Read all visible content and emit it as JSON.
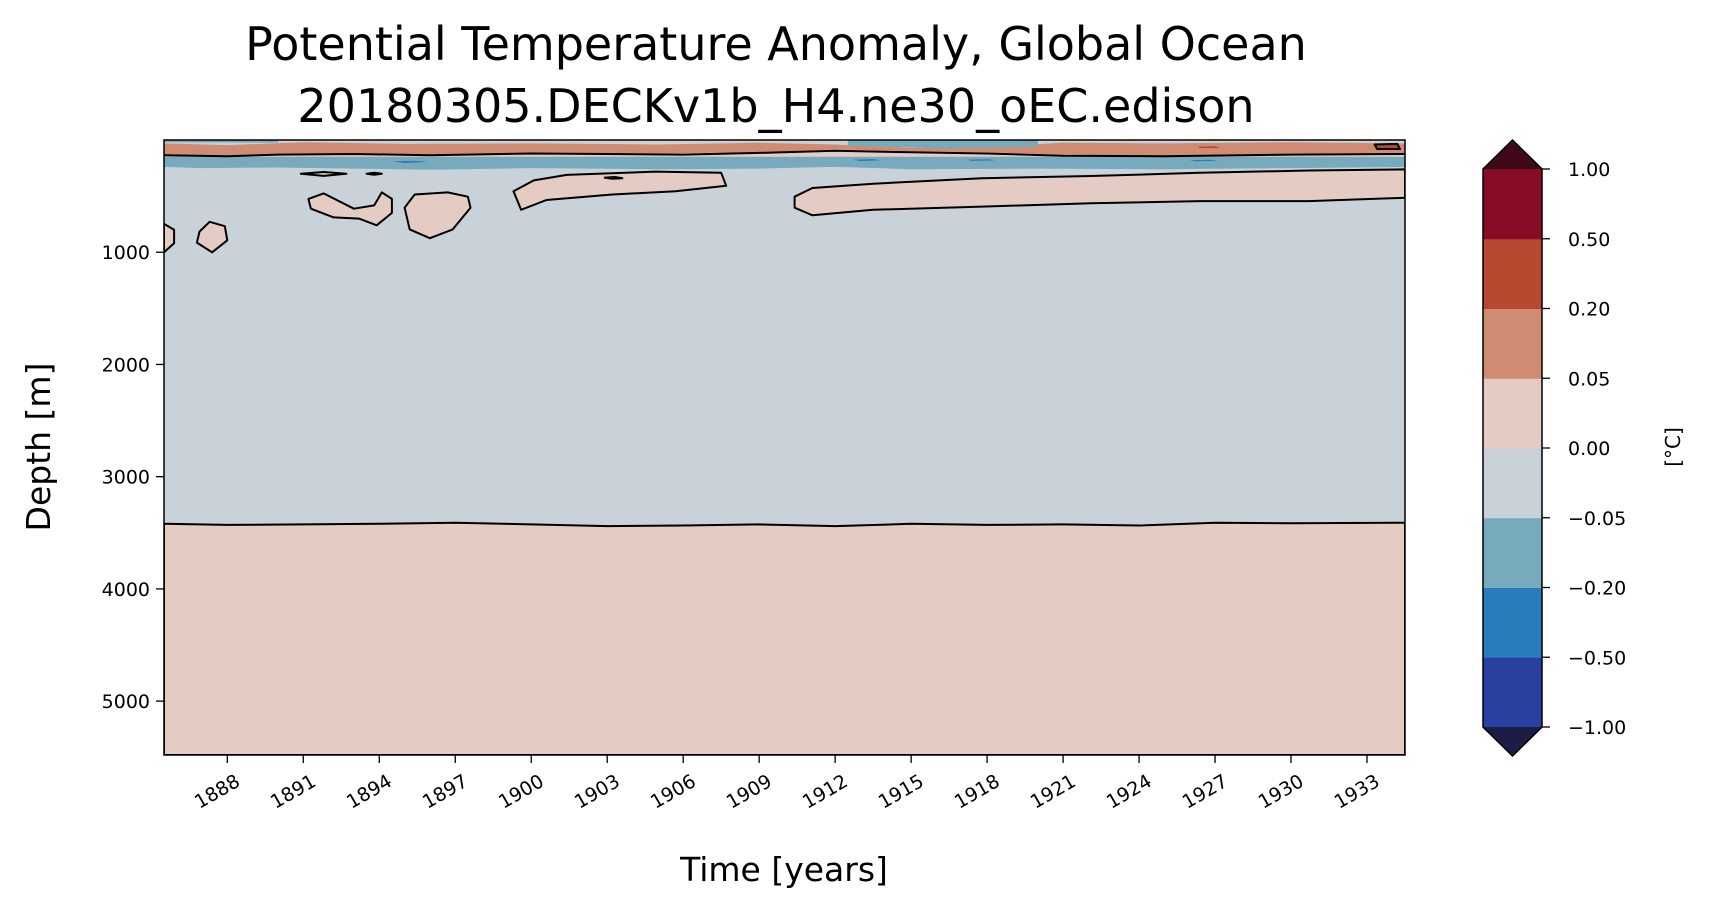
{
  "chart_data": {
    "type": "heatmap",
    "subtype": "filled-contour",
    "title": [
      "Potential Temperature Anomaly, Global Ocean",
      "20180305.DECKv1b_H4.ne30_oEC.edison"
    ],
    "xlabel": "Time [years]",
    "ylabel": "Depth [m]",
    "xlim": [
      1885.5,
      1934.5
    ],
    "ylim": [
      5480,
      0
    ],
    "xticks": [
      1888,
      1891,
      1894,
      1897,
      1900,
      1903,
      1906,
      1909,
      1912,
      1915,
      1918,
      1921,
      1924,
      1927,
      1930,
      1933
    ],
    "yticks": [
      1000,
      2000,
      3000,
      4000,
      5000
    ],
    "colorbar": {
      "label": "[°C]",
      "levels": [
        -1.0,
        -0.5,
        -0.2,
        -0.05,
        0.0,
        0.05,
        0.2,
        0.5,
        1.0
      ],
      "tick_labels": [
        "−1.00",
        "−0.50",
        "−0.20",
        "−0.05",
        "0.00",
        "0.05",
        "0.20",
        "0.50",
        "1.00"
      ],
      "colors": [
        "#2a40a0",
        "#2a7bba",
        "#78aabe",
        "#c9d2d8",
        "#e4cbc4",
        "#cf8c73",
        "#b8482f",
        "#870d27"
      ],
      "under_color": "#1b1d45",
      "over_color": "#3e0a17",
      "extend": "both"
    },
    "background_band": 3,
    "regions": [
      {
        "name": "deep-warm-layer",
        "band": 4,
        "contour": true,
        "points": [
          [
            1885.5,
            3420
          ],
          [
            1888,
            3430
          ],
          [
            1891,
            3425
          ],
          [
            1894,
            3420
          ],
          [
            1897,
            3410
          ],
          [
            1900,
            3425
          ],
          [
            1903,
            3440
          ],
          [
            1906,
            3435
          ],
          [
            1909,
            3425
          ],
          [
            1912,
            3440
          ],
          [
            1915,
            3420
          ],
          [
            1918,
            3430
          ],
          [
            1921,
            3425
          ],
          [
            1924,
            3435
          ],
          [
            1927,
            3410
          ],
          [
            1930,
            3415
          ],
          [
            1934.5,
            3410
          ],
          [
            1934.5,
            5480
          ],
          [
            1885.5,
            5480
          ]
        ]
      },
      {
        "name": "surface-cool-layer",
        "band": 2,
        "contour": false,
        "points": [
          [
            1885.5,
            100
          ],
          [
            1934.5,
            100
          ],
          [
            1934.5,
            240
          ],
          [
            1930,
            250
          ],
          [
            1925,
            260
          ],
          [
            1920,
            255
          ],
          [
            1915,
            260
          ],
          [
            1912,
            240
          ],
          [
            1909,
            255
          ],
          [
            1905,
            260
          ],
          [
            1900,
            250
          ],
          [
            1896,
            265
          ],
          [
            1893,
            255
          ],
          [
            1890,
            245
          ],
          [
            1887,
            250
          ],
          [
            1885.5,
            240
          ]
        ]
      },
      {
        "name": "surface-strip-pink",
        "band": 4,
        "contour": false,
        "points": [
          [
            1885.5,
            95
          ],
          [
            1934.5,
            95
          ],
          [
            1934.5,
            150
          ],
          [
            1885.5,
            150
          ]
        ]
      },
      {
        "name": "surface-warm-layer",
        "band": 5,
        "contour": false,
        "points": [
          [
            1885.5,
            30
          ],
          [
            1888,
            45
          ],
          [
            1891,
            20
          ],
          [
            1895,
            35
          ],
          [
            1900,
            30
          ],
          [
            1905,
            40
          ],
          [
            1909,
            25
          ],
          [
            1912,
            40
          ],
          [
            1915,
            70
          ],
          [
            1918,
            60
          ],
          [
            1921,
            25
          ],
          [
            1925,
            30
          ],
          [
            1930,
            20
          ],
          [
            1934.5,
            30
          ],
          [
            1934.5,
            120
          ],
          [
            1930,
            125
          ],
          [
            1925,
            140
          ],
          [
            1921,
            130
          ],
          [
            1918,
            110
          ],
          [
            1915,
            100
          ],
          [
            1912,
            85
          ],
          [
            1909,
            110
          ],
          [
            1905,
            120
          ],
          [
            1900,
            115
          ],
          [
            1896,
            130
          ],
          [
            1893,
            120
          ],
          [
            1890,
            135
          ],
          [
            1887,
            140
          ],
          [
            1885.5,
            130
          ]
        ]
      },
      {
        "name": "surface-cool-top",
        "band": 2,
        "contour": false,
        "points": [
          [
            1912.5,
            0
          ],
          [
            1920,
            0
          ],
          [
            1920,
            60
          ],
          [
            1916,
            75
          ],
          [
            1912.5,
            50
          ]
        ]
      },
      {
        "name": "surface-cool-top-left",
        "band": 2,
        "contour": false,
        "points": [
          [
            1885.5,
            0
          ],
          [
            1890,
            0
          ],
          [
            1890,
            25
          ],
          [
            1885.5,
            20
          ]
        ]
      },
      {
        "name": "spot-strong-cool-1",
        "band": 1,
        "contour": false,
        "points": [
          [
            1894.5,
            190
          ],
          [
            1895.4,
            185
          ],
          [
            1895.9,
            195
          ],
          [
            1895,
            205
          ]
        ]
      },
      {
        "name": "spot-strong-cool-2",
        "band": 1,
        "contour": false,
        "points": [
          [
            1912.7,
            175
          ],
          [
            1913.5,
            170
          ],
          [
            1913.8,
            180
          ],
          [
            1913,
            188
          ]
        ]
      },
      {
        "name": "spot-strong-cool-3",
        "band": 1,
        "contour": false,
        "points": [
          [
            1917.2,
            175
          ],
          [
            1918.1,
            172
          ],
          [
            1918.3,
            182
          ],
          [
            1917.4,
            186
          ]
        ]
      },
      {
        "name": "spot-strong-cool-4",
        "band": 1,
        "contour": false,
        "points": [
          [
            1926.0,
            180
          ],
          [
            1926.8,
            176
          ],
          [
            1927.1,
            186
          ],
          [
            1926.2,
            190
          ]
        ]
      },
      {
        "name": "spot-warm-1",
        "band": 6,
        "contour": false,
        "points": [
          [
            1926.3,
            60
          ],
          [
            1927,
            55
          ],
          [
            1927.2,
            70
          ],
          [
            1926.4,
            72
          ]
        ]
      },
      {
        "name": "spot-warm-2",
        "band": 6,
        "contour": true,
        "points": [
          [
            1933.3,
            40
          ],
          [
            1934.2,
            35
          ],
          [
            1934.3,
            80
          ],
          [
            1933.4,
            80
          ]
        ]
      },
      {
        "name": "surface-contour",
        "band": null,
        "contour": true,
        "line_only": true,
        "points": [
          [
            1885.5,
            135
          ],
          [
            1888,
            145
          ],
          [
            1890,
            130
          ],
          [
            1893,
            125
          ],
          [
            1896,
            135
          ],
          [
            1900,
            120
          ],
          [
            1903,
            125
          ],
          [
            1906,
            130
          ],
          [
            1909,
            115
          ],
          [
            1912,
            95
          ],
          [
            1915,
            110
          ],
          [
            1918,
            120
          ],
          [
            1921,
            140
          ],
          [
            1925,
            145
          ],
          [
            1930,
            130
          ],
          [
            1934.5,
            125
          ]
        ]
      },
      {
        "name": "blob-1910-1934",
        "band": 4,
        "contour": true,
        "points": [
          [
            1910.4,
            505
          ],
          [
            1911.1,
            428
          ],
          [
            1913.5,
            389
          ],
          [
            1917.8,
            340
          ],
          [
            1922.1,
            321
          ],
          [
            1926.4,
            292
          ],
          [
            1930.7,
            272
          ],
          [
            1934.5,
            262
          ],
          [
            1934.5,
            515
          ],
          [
            1930.7,
            544
          ],
          [
            1926.4,
            544
          ],
          [
            1922.1,
            564
          ],
          [
            1917.8,
            593
          ],
          [
            1913.5,
            622
          ],
          [
            1911.1,
            671
          ],
          [
            1910.4,
            603
          ]
        ]
      },
      {
        "name": "blob-1899-1907",
        "band": 4,
        "contour": true,
        "points": [
          [
            1899.3,
            457
          ],
          [
            1900.1,
            360
          ],
          [
            1901.4,
            311
          ],
          [
            1904.9,
            282
          ],
          [
            1907.5,
            292
          ],
          [
            1907.7,
            408
          ],
          [
            1905.7,
            457
          ],
          [
            1903.2,
            486
          ],
          [
            1900.6,
            535
          ],
          [
            1899.6,
            622
          ]
        ]
      },
      {
        "name": "blob-1891-1894",
        "band": 4,
        "contour": true,
        "points": [
          [
            1891.2,
            525
          ],
          [
            1891.8,
            476
          ],
          [
            1893.0,
            612
          ],
          [
            1893.8,
            583
          ],
          [
            1894.1,
            467
          ],
          [
            1894.5,
            525
          ],
          [
            1894.5,
            650
          ],
          [
            1893.9,
            760
          ],
          [
            1893.2,
            700
          ],
          [
            1892.2,
            690
          ],
          [
            1891.3,
            612
          ]
        ]
      },
      {
        "name": "blob-1895-1897",
        "band": 4,
        "contour": true,
        "points": [
          [
            1895.0,
            603
          ],
          [
            1895.4,
            486
          ],
          [
            1896.7,
            467
          ],
          [
            1897.5,
            505
          ],
          [
            1897.6,
            603
          ],
          [
            1896.9,
            797
          ],
          [
            1896.0,
            875
          ],
          [
            1895.2,
            797
          ]
        ]
      },
      {
        "name": "blob-1887",
        "band": 4,
        "contour": true,
        "points": [
          [
            1886.9,
            816
          ],
          [
            1887.3,
            729
          ],
          [
            1887.9,
            768
          ],
          [
            1888.0,
            894
          ],
          [
            1887.4,
            1001
          ],
          [
            1886.8,
            914
          ]
        ]
      },
      {
        "name": "blob-left-edge",
        "band": 4,
        "contour": true,
        "points": [
          [
            1885.5,
            748
          ],
          [
            1885.9,
            800
          ],
          [
            1885.9,
            920
          ],
          [
            1885.5,
            1000
          ]
        ]
      },
      {
        "name": "blob-small-1891",
        "band": 4,
        "contour": true,
        "points": [
          [
            1890.9,
            300
          ],
          [
            1891.8,
            285
          ],
          [
            1892.7,
            300
          ],
          [
            1891.8,
            320
          ]
        ]
      },
      {
        "name": "blob-small-1893",
        "band": 4,
        "contour": true,
        "points": [
          [
            1893.5,
            300
          ],
          [
            1893.8,
            292
          ],
          [
            1894.1,
            300
          ],
          [
            1893.8,
            310
          ]
        ]
      },
      {
        "name": "blob-small-1904",
        "band": 4,
        "contour": true,
        "points": [
          [
            1902.9,
            335
          ],
          [
            1903.3,
            330
          ],
          [
            1903.6,
            340
          ],
          [
            1903.2,
            345
          ]
        ]
      }
    ]
  }
}
